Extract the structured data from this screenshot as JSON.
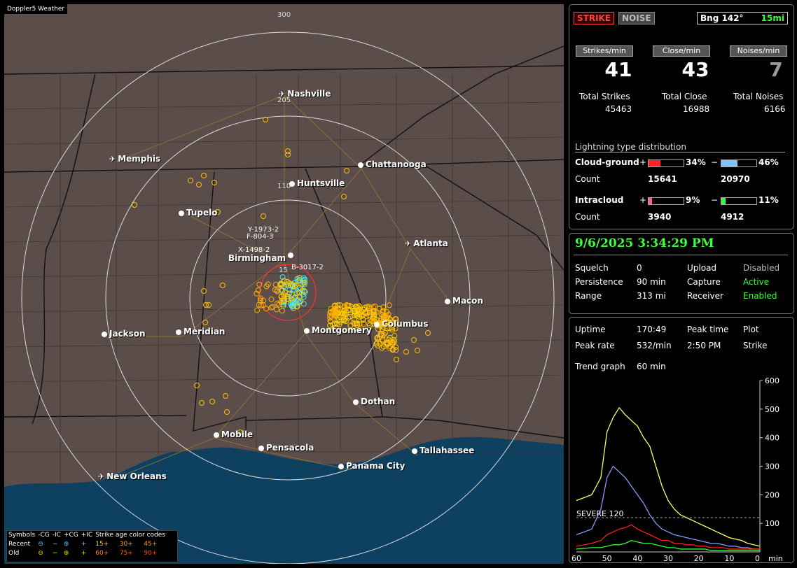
{
  "map": {
    "title": "Doppler5 Weather",
    "range_labels": [
      "300",
      "205",
      "110",
      "15"
    ],
    "cities": [
      {
        "name": "Nashville",
        "type": "plane"
      },
      {
        "name": "Memphis",
        "type": "plane"
      },
      {
        "name": "Chattanooga",
        "type": "dot"
      },
      {
        "name": "Huntsville",
        "type": "dot"
      },
      {
        "name": "Tupelo",
        "type": "dot"
      },
      {
        "name": "Atlanta",
        "type": "plane"
      },
      {
        "name": "Birmingham",
        "type": "dot"
      },
      {
        "name": "Macon",
        "type": "dot"
      },
      {
        "name": "Jackson",
        "type": "dot"
      },
      {
        "name": "Meridian",
        "type": "dot"
      },
      {
        "name": "Montgomery",
        "type": "dot"
      },
      {
        "name": "Columbus",
        "type": "dot"
      },
      {
        "name": "Dothan",
        "type": "dot"
      },
      {
        "name": "Mobile",
        "type": "dot"
      },
      {
        "name": "Pensacola",
        "type": "dot"
      },
      {
        "name": "Tallahassee",
        "type": "dot"
      },
      {
        "name": "Panama City",
        "type": "dot"
      },
      {
        "name": "New Orleans",
        "type": "plane"
      }
    ],
    "storm_tags": [
      "Y-1973-2",
      "F-804-3",
      "X-1498-2",
      "B-3017-2"
    ]
  },
  "legend": {
    "headers": [
      "Symbols",
      "-CG",
      "-IC",
      "+CG",
      "+IC",
      "Strike age color codes"
    ],
    "rows": [
      {
        "label": "Recent",
        "ages": [
          "15+",
          "30+",
          "45+"
        ]
      },
      {
        "label": "Old",
        "ages": [
          "60+",
          "75+",
          "90+"
        ]
      }
    ]
  },
  "panel1": {
    "strike_btn": "STRIKE",
    "noise_btn": "NOISE",
    "bearing": "Bng 142°",
    "distance": "15mi",
    "headers": [
      "Strikes/min",
      "Close/min",
      "Noises/min"
    ],
    "values": [
      "41",
      "43",
      "7"
    ],
    "totals_labels": [
      "Total Strikes",
      "Total Close",
      "Total Noises"
    ],
    "totals": [
      "45463",
      "16988",
      "6166"
    ],
    "dist_title": "Lightning type distribution",
    "cg_label": "Cloud-ground",
    "ic_label": "Intracloud",
    "count_label": "Count",
    "plus": "+",
    "minus": "−",
    "cg_pos_pct": "34%",
    "cg_neg_pct": "46%",
    "cg_pos_count": "15641",
    "cg_neg_count": "20970",
    "ic_pos_pct": "9%",
    "ic_neg_pct": "11%",
    "ic_pos_count": "3940",
    "ic_neg_count": "4912",
    "cg_pos_frac": 0.34,
    "cg_neg_frac": 0.46,
    "ic_pos_frac": 0.09,
    "ic_neg_frac": 0.11
  },
  "panel2": {
    "datetime": "9/6/2025 3:34:29 PM",
    "rows": [
      [
        "Squelch",
        "0",
        "Upload",
        "Disabled"
      ],
      [
        "Persistence",
        "90 min",
        "Capture",
        "Active"
      ],
      [
        "Range",
        "313 mi",
        "Receiver",
        "Enabled"
      ]
    ]
  },
  "panel3": {
    "uptime_label": "Uptime",
    "uptime": "170:49",
    "peak_time_label": "Peak time",
    "plot_label": "Plot",
    "peak_rate_label": "Peak rate",
    "peak_rate": "532/min",
    "peak_time": "2:50 PM",
    "plot": "Strike",
    "trend_label": "Trend graph",
    "trend": "60 min",
    "severe_label": "SEVERE 120",
    "y_ticks": [
      "600",
      "500",
      "400",
      "300",
      "200",
      "100"
    ],
    "x_ticks": [
      "60",
      "50",
      "40",
      "30",
      "20",
      "10",
      "0"
    ],
    "x_unit": "min"
  },
  "chart_data": {
    "type": "line",
    "x": [
      60,
      55,
      52,
      50,
      48,
      46,
      44,
      42,
      40,
      38,
      36,
      34,
      32,
      30,
      28,
      26,
      24,
      22,
      20,
      18,
      16,
      14,
      12,
      10,
      8,
      6,
      4,
      2,
      0
    ],
    "series": [
      {
        "values": [
          180,
          200,
          260,
          420,
          470,
          505,
          480,
          460,
          440,
          400,
          370,
          300,
          230,
          180,
          150,
          130,
          120,
          110,
          100,
          90,
          80,
          70,
          60,
          50,
          45,
          40,
          30,
          25,
          20
        ]
      },
      {
        "values": [
          60,
          80,
          150,
          260,
          300,
          280,
          260,
          230,
          200,
          170,
          130,
          100,
          80,
          70,
          60,
          55,
          50,
          45,
          40,
          35,
          30,
          30,
          25,
          20,
          20,
          15,
          15,
          10,
          10
        ]
      },
      {
        "values": [
          20,
          30,
          40,
          60,
          70,
          80,
          85,
          95,
          80,
          70,
          60,
          50,
          40,
          40,
          30,
          30,
          25,
          25,
          20,
          20,
          15,
          15,
          15,
          10,
          10,
          10,
          10,
          10,
          10
        ]
      },
      {
        "values": [
          10,
          15,
          15,
          20,
          25,
          25,
          30,
          40,
          35,
          30,
          30,
          25,
          20,
          15,
          15,
          10,
          10,
          10,
          10,
          10,
          5,
          5,
          5,
          5,
          5,
          5,
          5,
          5,
          5
        ]
      }
    ],
    "ylim": [
      0,
      600
    ],
    "xlim": [
      60,
      0
    ],
    "colors": [
      "#ffff66",
      "#8899ff",
      "#ff2020",
      "#33ff33"
    ]
  }
}
